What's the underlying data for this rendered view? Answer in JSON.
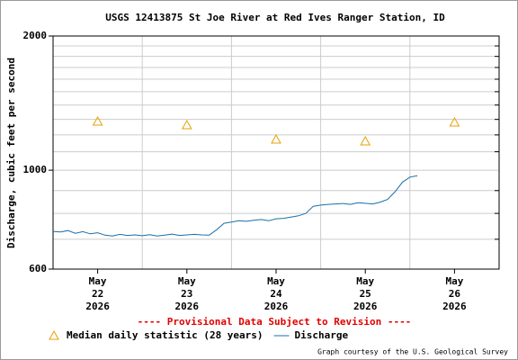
{
  "chart_data": {
    "type": "line",
    "title": "USGS 12413875 St Joe River at Red Ives Ranger Station, ID",
    "y_label": "Discharge, cubic feet per second",
    "log_y": true,
    "ylim": [
      600,
      2000
    ],
    "yticks": [
      600,
      1000,
      2000
    ],
    "minor_yticks": [
      700,
      800,
      900,
      1100,
      1200,
      1300,
      1400,
      1500,
      1600,
      1700,
      1800,
      1900
    ],
    "grid": true,
    "xlim": [
      0,
      120
    ],
    "day_labels": [
      [
        "May",
        "22",
        "2026"
      ],
      [
        "May",
        "23",
        "2026"
      ],
      [
        "May",
        "24",
        "2026"
      ],
      [
        "May",
        "25",
        "2026"
      ],
      [
        "May",
        "26",
        "2026"
      ]
    ],
    "series": [
      {
        "name": "Median daily statistic (28 years)",
        "type": "scatter",
        "color": "#e8a000",
        "x": [
          12,
          36,
          60,
          84,
          108
        ],
        "values": [
          1286,
          1262,
          1172,
          1161,
          1280
        ]
      },
      {
        "name": "Discharge",
        "type": "line",
        "color": "#1a6fa8",
        "x": [
          0,
          2,
          4,
          6,
          8,
          10,
          12,
          14,
          16,
          18,
          20,
          22,
          24,
          26,
          28,
          30,
          32,
          34,
          36,
          38,
          40,
          42,
          44,
          46,
          48,
          50,
          52,
          54,
          56,
          58,
          60,
          62,
          64,
          66,
          68,
          70,
          72,
          74,
          76,
          78,
          80,
          82,
          84,
          86,
          88,
          90,
          92,
          94,
          96,
          98
        ],
        "values": [
          729,
          727,
          732,
          722,
          728,
          720,
          724,
          715,
          712,
          718,
          714,
          716,
          713,
          717,
          712,
          715,
          719,
          714,
          716,
          718,
          716,
          715,
          735,
          760,
          765,
          770,
          768,
          772,
          775,
          770,
          778,
          780,
          785,
          790,
          800,
          830,
          835,
          838,
          840,
          842,
          838,
          845,
          843,
          840,
          848,
          860,
          895,
          940,
          965,
          972
        ]
      }
    ],
    "notice": "---- Provisional Data Subject to Revision ----",
    "credit": "Graph courtesy of the U.S. Geological Survey"
  }
}
